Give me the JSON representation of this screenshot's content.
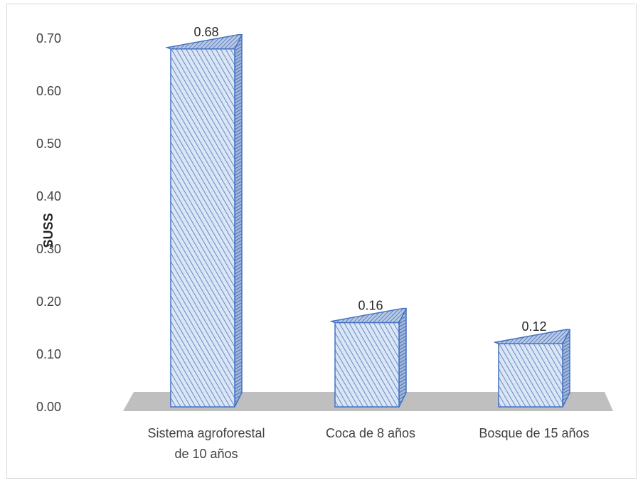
{
  "chart_data": {
    "type": "bar",
    "title": "",
    "xlabel": "",
    "ylabel": "SUSS",
    "ylim": [
      0,
      0.7
    ],
    "yticks": [
      "0.00",
      "0.10",
      "0.20",
      "0.30",
      "0.40",
      "0.50",
      "0.60",
      "0.70"
    ],
    "categories": [
      [
        "Sistema agroforestal",
        "de 10 años"
      ],
      [
        "Coca de 8 años"
      ],
      [
        "Bosque de 15 años"
      ]
    ],
    "values": [
      0.68,
      0.16,
      0.12
    ],
    "data_labels": [
      "0.68",
      "0.16",
      "0.12"
    ],
    "grid": false,
    "style": "3d-bar-hatched",
    "colors": {
      "bar_fill": "#dae6f5",
      "bar_hatch": "#4a72b8",
      "bar_edge": "#4472c4",
      "floor": "#bfbfbf"
    }
  }
}
